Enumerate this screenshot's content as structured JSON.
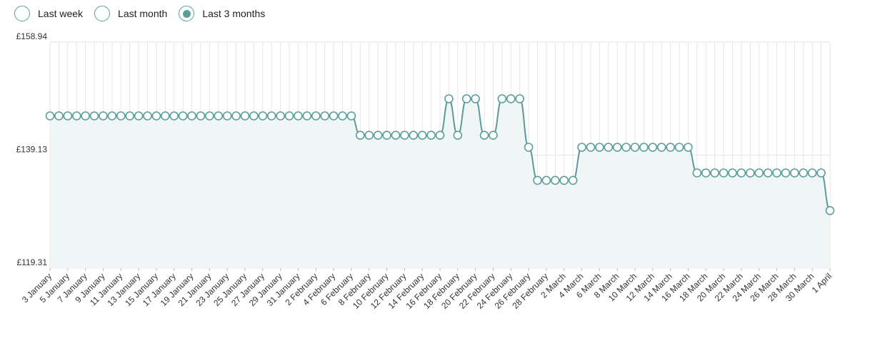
{
  "range_options": [
    {
      "label": "Last week",
      "selected": false
    },
    {
      "label": "Last month",
      "selected": false
    },
    {
      "label": "Last 3 months",
      "selected": true
    }
  ],
  "colors": {
    "line": "#5a9e9c",
    "fill": "#eef5f4",
    "grid": "#e6e6e6",
    "text": "#333333"
  },
  "chart_data": {
    "type": "area",
    "title": "",
    "xlabel": "",
    "ylabel": "",
    "y_tick_labels": [
      "£119.31",
      "£139.13",
      "£158.94"
    ],
    "y_ticks": [
      119.31,
      139.13,
      158.94
    ],
    "ylim": [
      119.31,
      158.94
    ],
    "grid": true,
    "x_tick_labels": [
      "3 January",
      "5 January",
      "7 January",
      "9 January",
      "11 January",
      "13 January",
      "15 January",
      "17 January",
      "19 January",
      "21 January",
      "23 January",
      "25 January",
      "27 January",
      "29 January",
      "31 January",
      "2 February",
      "4 February",
      "6 February",
      "8 February",
      "10 February",
      "12 February",
      "14 February",
      "16 February",
      "18 February",
      "20 February",
      "22 February",
      "24 February",
      "26 February",
      "28 February",
      "2 March",
      "4 March",
      "6 March",
      "8 March",
      "10 March",
      "12 March",
      "14 March",
      "16 March",
      "18 March",
      "20 March",
      "22 March",
      "24 March",
      "26 March",
      "28 March",
      "30 March",
      "1 April"
    ],
    "x": [
      "3 January",
      "4 January",
      "5 January",
      "6 January",
      "7 January",
      "8 January",
      "9 January",
      "10 January",
      "11 January",
      "12 January",
      "13 January",
      "14 January",
      "15 January",
      "16 January",
      "17 January",
      "18 January",
      "19 January",
      "20 January",
      "21 January",
      "22 January",
      "23 January",
      "24 January",
      "25 January",
      "26 January",
      "27 January",
      "28 January",
      "29 January",
      "30 January",
      "31 January",
      "1 February",
      "2 February",
      "3 February",
      "4 February",
      "5 February",
      "6 February",
      "7 February",
      "8 February",
      "9 February",
      "10 February",
      "11 February",
      "12 February",
      "13 February",
      "14 February",
      "15 February",
      "16 February",
      "17 February",
      "18 February",
      "19 February",
      "20 February",
      "21 February",
      "22 February",
      "23 February",
      "24 February",
      "25 February",
      "26 February",
      "27 February",
      "28 February",
      "1 March",
      "2 March",
      "3 March",
      "4 March",
      "5 March",
      "6 March",
      "7 March",
      "8 March",
      "9 March",
      "10 March",
      "11 March",
      "12 March",
      "13 March",
      "14 March",
      "15 March",
      "16 March",
      "17 March",
      "18 March",
      "19 March",
      "20 March",
      "21 March",
      "22 March",
      "23 March",
      "24 March",
      "25 March",
      "26 March",
      "27 March",
      "28 March",
      "29 March",
      "30 March",
      "31 March",
      "1 April"
    ],
    "series": [
      {
        "values": [
          146.0,
          146.0,
          146.0,
          146.0,
          146.0,
          146.0,
          146.0,
          146.0,
          146.0,
          146.0,
          146.0,
          146.0,
          146.0,
          146.0,
          146.0,
          146.0,
          146.0,
          146.0,
          146.0,
          146.0,
          146.0,
          146.0,
          146.0,
          146.0,
          146.0,
          146.0,
          146.0,
          146.0,
          146.0,
          146.0,
          146.0,
          146.0,
          146.0,
          146.0,
          146.0,
          142.6,
          142.6,
          142.6,
          142.6,
          142.6,
          142.6,
          142.6,
          142.6,
          142.6,
          142.6,
          149.0,
          142.6,
          149.0,
          149.0,
          142.6,
          142.6,
          149.0,
          149.0,
          149.0,
          140.5,
          134.7,
          134.7,
          134.7,
          134.7,
          134.7,
          140.5,
          140.5,
          140.5,
          140.5,
          140.5,
          140.5,
          140.5,
          140.5,
          140.5,
          140.5,
          140.5,
          140.5,
          140.5,
          136.0,
          136.0,
          136.0,
          136.0,
          136.0,
          136.0,
          136.0,
          136.0,
          136.0,
          136.0,
          136.0,
          136.0,
          136.0,
          136.0,
          136.0,
          129.4
        ]
      }
    ]
  }
}
